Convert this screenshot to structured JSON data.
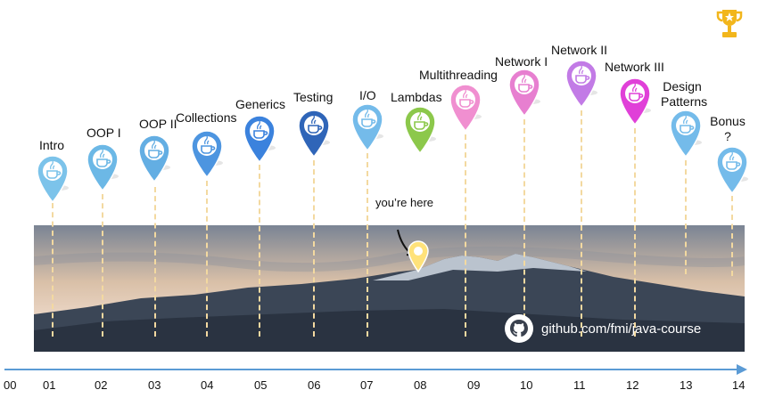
{
  "milestones": [
    {
      "label": "Intro",
      "tick": "01",
      "color": "#7cc3ea"
    },
    {
      "label": "OOP I",
      "tick": "02",
      "color": "#6cb8e6"
    },
    {
      "label": "OOP II",
      "tick": "03",
      "color": "#63aee3"
    },
    {
      "label": "Collections",
      "tick": "04",
      "color": "#4d95e0"
    },
    {
      "label": "Generics",
      "tick": "05",
      "color": "#3b82dd"
    },
    {
      "label": "Testing",
      "tick": "06",
      "color": "#2f65b8"
    },
    {
      "label": "I/O",
      "tick": "07",
      "color": "#74bbea"
    },
    {
      "label": "Lambdas",
      "tick": "08",
      "color": "#8cc84b"
    },
    {
      "label": "Multithreading",
      "tick": "09",
      "color": "#f08fd0"
    },
    {
      "label": "Network I",
      "tick": "10",
      "color": "#e77fd0"
    },
    {
      "label": "Network II",
      "tick": "11",
      "color": "#c27be6"
    },
    {
      "label": "Network III",
      "tick": "12",
      "color": "#e040d8"
    },
    {
      "label": "Design Patterns",
      "tick": "13",
      "color": "#74bbea"
    },
    {
      "label": "Bonus ?",
      "tick": "14",
      "color": "#74bbea"
    }
  ],
  "axis": {
    "start": "00",
    "color": "#5b9bd5"
  },
  "you_are_here": "you’re here",
  "github": "github.com/fmi/java-course",
  "trophy_color": "#f2b61c",
  "here_pin_color": "#ffe27a"
}
